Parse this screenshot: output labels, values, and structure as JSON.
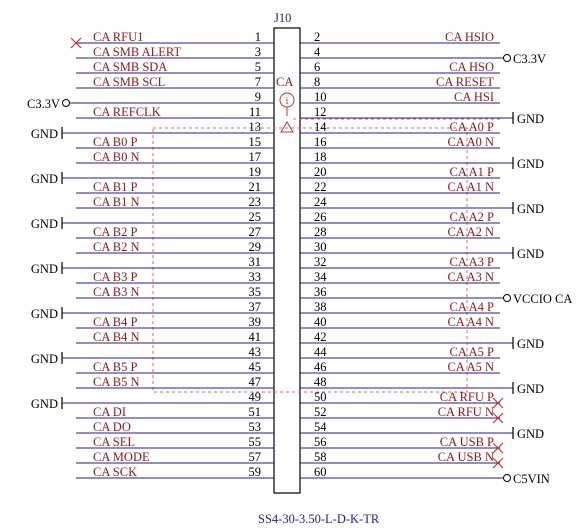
{
  "designator": "J10",
  "part_number": "SS4-30-3.50-L-D-K-TR",
  "group_label": "CA",
  "info_icon": "i",
  "left_pins": [
    {
      "num": "1",
      "net": "CA_RFU1",
      "term": "nc"
    },
    {
      "num": "3",
      "net": "CA_SMB_ALERT",
      "term": ""
    },
    {
      "num": "5",
      "net": "CA_SMB_SDA",
      "term": ""
    },
    {
      "num": "7",
      "net": "CA_SMB_SCL",
      "term": ""
    },
    {
      "num": "9",
      "net": "",
      "term": "pwr",
      "pwr_label": "C3.3V"
    },
    {
      "num": "11",
      "net": "CA_REFCLK",
      "term": ""
    },
    {
      "num": "13",
      "net": "",
      "term": "gnd",
      "gnd_label": "GND"
    },
    {
      "num": "15",
      "net": "CA_B0_P",
      "term": ""
    },
    {
      "num": "17",
      "net": "CA_B0_N",
      "term": ""
    },
    {
      "num": "19",
      "net": "",
      "term": "gnd",
      "gnd_label": "GND"
    },
    {
      "num": "21",
      "net": "CA_B1_P",
      "term": ""
    },
    {
      "num": "23",
      "net": "CA_B1_N",
      "term": ""
    },
    {
      "num": "25",
      "net": "",
      "term": "gnd",
      "gnd_label": "GND"
    },
    {
      "num": "27",
      "net": "CA_B2_P",
      "term": ""
    },
    {
      "num": "29",
      "net": "CA_B2_N",
      "term": ""
    },
    {
      "num": "31",
      "net": "",
      "term": "gnd",
      "gnd_label": "GND"
    },
    {
      "num": "33",
      "net": "CA_B3_P",
      "term": ""
    },
    {
      "num": "35",
      "net": "CA_B3_N",
      "term": ""
    },
    {
      "num": "37",
      "net": "",
      "term": "gnd",
      "gnd_label": "GND"
    },
    {
      "num": "39",
      "net": "CA_B4_P",
      "term": ""
    },
    {
      "num": "41",
      "net": "CA_B4_N",
      "term": ""
    },
    {
      "num": "43",
      "net": "",
      "term": "gnd",
      "gnd_label": "GND"
    },
    {
      "num": "45",
      "net": "CA_B5_P",
      "term": ""
    },
    {
      "num": "47",
      "net": "CA_B5_N",
      "term": ""
    },
    {
      "num": "49",
      "net": "",
      "term": "gnd",
      "gnd_label": "GND"
    },
    {
      "num": "51",
      "net": "CA_DI",
      "term": ""
    },
    {
      "num": "53",
      "net": "CA_DO",
      "term": ""
    },
    {
      "num": "55",
      "net": "CA_SEL",
      "term": ""
    },
    {
      "num": "57",
      "net": "CA_MODE",
      "term": ""
    },
    {
      "num": "59",
      "net": "CA_SCK",
      "term": ""
    }
  ],
  "right_pins": [
    {
      "num": "2",
      "net": "CA_HSIO",
      "term": ""
    },
    {
      "num": "4",
      "net": "",
      "term": "pwr",
      "pwr_label": "C3.3V"
    },
    {
      "num": "6",
      "net": "CA_HSO",
      "term": ""
    },
    {
      "num": "8",
      "net": "CA_RESET",
      "term": ""
    },
    {
      "num": "10",
      "net": "CA_HSI",
      "term": ""
    },
    {
      "num": "12",
      "net": "",
      "term": "gnd",
      "gnd_label": "GND"
    },
    {
      "num": "14",
      "net": "CA_A0_P",
      "term": ""
    },
    {
      "num": "16",
      "net": "CA_A0_N",
      "term": ""
    },
    {
      "num": "18",
      "net": "",
      "term": "gnd",
      "gnd_label": "GND"
    },
    {
      "num": "20",
      "net": "CA_A1_P",
      "term": ""
    },
    {
      "num": "22",
      "net": "CA_A1_N",
      "term": ""
    },
    {
      "num": "24",
      "net": "",
      "term": "gnd",
      "gnd_label": "GND"
    },
    {
      "num": "26",
      "net": "CA_A2_P",
      "term": ""
    },
    {
      "num": "28",
      "net": "CA_A2_N",
      "term": ""
    },
    {
      "num": "30",
      "net": "",
      "term": "gnd",
      "gnd_label": "GND"
    },
    {
      "num": "32",
      "net": "CA_A3_P",
      "term": ""
    },
    {
      "num": "34",
      "net": "CA_A3_N",
      "term": ""
    },
    {
      "num": "36",
      "net": "",
      "term": "pwr",
      "pwr_label": "VCCIO_CA"
    },
    {
      "num": "38",
      "net": "CA_A4_P",
      "term": ""
    },
    {
      "num": "40",
      "net": "CA_A4_N",
      "term": ""
    },
    {
      "num": "42",
      "net": "",
      "term": "gnd",
      "gnd_label": "GND"
    },
    {
      "num": "44",
      "net": "CA_A5_P",
      "term": ""
    },
    {
      "num": "46",
      "net": "CA_A5_N",
      "term": ""
    },
    {
      "num": "48",
      "net": "",
      "term": "gnd",
      "gnd_label": "GND"
    },
    {
      "num": "50",
      "net": "CA_RFU_P",
      "term": "nc"
    },
    {
      "num": "52",
      "net": "CA_RFU_N",
      "term": "nc"
    },
    {
      "num": "54",
      "net": "",
      "term": "gnd",
      "gnd_label": "GND"
    },
    {
      "num": "56",
      "net": "CA_USB_P",
      "term": "nc"
    },
    {
      "num": "58",
      "net": "CA_USB_N",
      "term": "nc"
    },
    {
      "num": "60",
      "net": "",
      "term": "pwr",
      "pwr_label": "C5VIN"
    }
  ]
}
